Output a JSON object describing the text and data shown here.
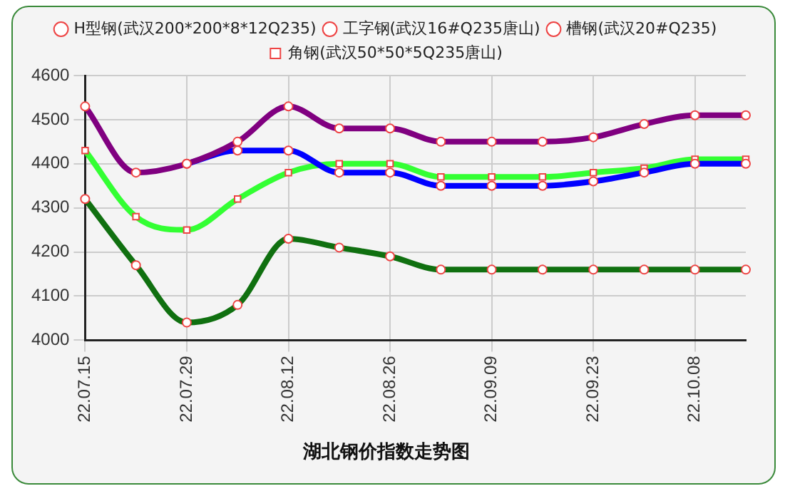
{
  "chart_data": {
    "type": "line",
    "title": "湖北钢价指数走势图",
    "categories": [
      "22.07.15",
      null,
      "22.07.29",
      null,
      "22.08.12",
      null,
      "22.08.26",
      null,
      "22.09.09",
      null,
      "22.09.23",
      null,
      "22.10.08",
      null
    ],
    "series": [
      {
        "name": "H型钢(武汉200*200*8*12Q235)",
        "color": "#107010",
        "marker": "circle",
        "values": [
          4320,
          4170,
          4040,
          4080,
          4230,
          4210,
          4190,
          4160,
          4160,
          4160,
          4160,
          4160,
          4160,
          4160
        ]
      },
      {
        "name": "工字钢(武汉16#Q235唐山)",
        "color": "#800080",
        "marker": "circle",
        "values": [
          4530,
          4380,
          4400,
          4450,
          4530,
          4480,
          4480,
          4450,
          4450,
          4450,
          4460,
          4490,
          4510,
          4510
        ]
      },
      {
        "name": "槽钢(武汉20#Q235)",
        "color": "#0000ff",
        "marker": "circle",
        "values": [
          null,
          null,
          4400,
          4430,
          4430,
          4380,
          4380,
          4350,
          4350,
          4350,
          4360,
          4380,
          4400,
          4400
        ]
      },
      {
        "name": "角钢(武汉50*50*5Q235唐山)",
        "color": "#33ff33",
        "marker": "square",
        "values": [
          4430,
          4280,
          4250,
          4320,
          4380,
          4400,
          4400,
          4370,
          4370,
          4370,
          4380,
          4390,
          4410,
          4410
        ]
      }
    ],
    "ylim": [
      4000,
      4600
    ],
    "yticks": [
      4000,
      4100,
      4200,
      4300,
      4400,
      4500,
      4600
    ],
    "grid": true,
    "legend": "top",
    "line_style": "solid"
  }
}
